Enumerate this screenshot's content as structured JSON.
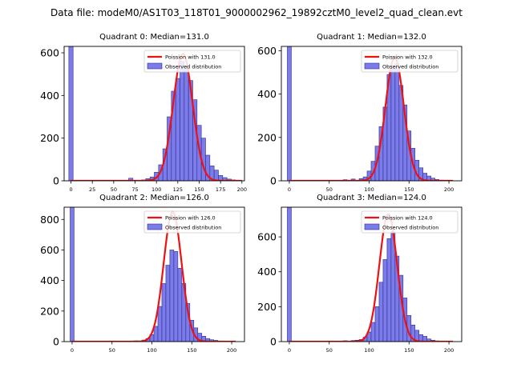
{
  "figure_title": "Data file: modeM0/AS1T03_118T01_9000002962_19892cztM0_level2_quad_clean.evt",
  "colors": {
    "bar_fill": "#7b7bea",
    "bar_edge": "#2d2d8f",
    "poisson_line": "#ee1111",
    "axis": "#000000"
  },
  "chart_data": [
    {
      "type": "bar",
      "title": "Quadrant 0: Median=131.0",
      "xlim": [
        -8,
        203
      ],
      "ylim": [
        0,
        630
      ],
      "xticks": [
        0,
        25,
        50,
        75,
        100,
        125,
        150,
        175,
        200
      ],
      "yticks": [
        0,
        200,
        400,
        600
      ],
      "legend": {
        "placement": "top-right",
        "entries": [
          "Poission with 131.0",
          "Observed distribution"
        ]
      },
      "bin_width": 5,
      "zero_bin": {
        "x": 0,
        "height": 630
      },
      "bins": [
        [
          70,
          12
        ],
        [
          85,
          4
        ],
        [
          90,
          10
        ],
        [
          95,
          18
        ],
        [
          100,
          40
        ],
        [
          105,
          75
        ],
        [
          110,
          150
        ],
        [
          115,
          300
        ],
        [
          120,
          420
        ],
        [
          125,
          480
        ],
        [
          130,
          560
        ],
        [
          135,
          530
        ],
        [
          140,
          470
        ],
        [
          145,
          380
        ],
        [
          150,
          260
        ],
        [
          155,
          200
        ],
        [
          160,
          120
        ],
        [
          165,
          70
        ],
        [
          170,
          50
        ],
        [
          175,
          25
        ],
        [
          180,
          15
        ],
        [
          185,
          8
        ],
        [
          190,
          4
        ]
      ],
      "poisson": {
        "mean": 131.0,
        "peak": 595,
        "x_range": [
          0,
          200
        ]
      }
    },
    {
      "type": "bar",
      "title": "Quadrant 1: Median=132.0",
      "xlim": [
        -10,
        216
      ],
      "ylim": [
        0,
        620
      ],
      "xticks": [
        0,
        50,
        100,
        150,
        200
      ],
      "yticks": [
        0,
        200,
        400,
        600
      ],
      "legend": {
        "placement": "top-right",
        "entries": [
          "Poission with 132.0",
          "Observed distribution"
        ]
      },
      "bin_width": 5,
      "zero_bin": {
        "x": 0,
        "height": 620
      },
      "bins": [
        [
          70,
          5
        ],
        [
          80,
          8
        ],
        [
          90,
          10
        ],
        [
          95,
          18
        ],
        [
          100,
          45
        ],
        [
          105,
          90
        ],
        [
          110,
          160
        ],
        [
          115,
          250
        ],
        [
          120,
          340
        ],
        [
          125,
          490
        ],
        [
          130,
          520
        ],
        [
          135,
          540
        ],
        [
          140,
          440
        ],
        [
          145,
          350
        ],
        [
          150,
          230
        ],
        [
          155,
          150
        ],
        [
          160,
          95
        ],
        [
          165,
          60
        ],
        [
          170,
          35
        ],
        [
          175,
          22
        ],
        [
          180,
          12
        ],
        [
          185,
          6
        ],
        [
          190,
          3
        ],
        [
          195,
          2
        ]
      ],
      "poisson": {
        "mean": 132.0,
        "peak": 570,
        "x_range": [
          0,
          205
        ]
      }
    },
    {
      "type": "bar",
      "title": "Quadrant 2: Median=126.0",
      "xlim": [
        -10,
        216
      ],
      "ylim": [
        0,
        880
      ],
      "xticks": [
        0,
        50,
        100,
        150,
        200
      ],
      "yticks": [
        0,
        200,
        400,
        600,
        800
      ],
      "legend": {
        "placement": "top-right",
        "entries": [
          "Poission with 126.0",
          "Observed distribution"
        ]
      },
      "bin_width": 5,
      "zero_bin": {
        "x": 0,
        "height": 880
      },
      "bins": [
        [
          70,
          3
        ],
        [
          80,
          5
        ],
        [
          90,
          10
        ],
        [
          95,
          20
        ],
        [
          100,
          45
        ],
        [
          105,
          100
        ],
        [
          110,
          230
        ],
        [
          115,
          380
        ],
        [
          120,
          500
        ],
        [
          125,
          600
        ],
        [
          130,
          590
        ],
        [
          135,
          480
        ],
        [
          140,
          380
        ],
        [
          145,
          250
        ],
        [
          150,
          140
        ],
        [
          155,
          90
        ],
        [
          160,
          55
        ],
        [
          165,
          35
        ],
        [
          170,
          20
        ],
        [
          175,
          12
        ],
        [
          180,
          8
        ],
        [
          185,
          4
        ],
        [
          190,
          2
        ]
      ],
      "poisson": {
        "mean": 126.0,
        "peak": 850,
        "x_range": [
          0,
          205
        ]
      }
    },
    {
      "type": "bar",
      "title": "Quadrant 3: Median=124.0",
      "xlim": [
        -10,
        216
      ],
      "ylim": [
        0,
        770
      ],
      "xticks": [
        0,
        50,
        100,
        150,
        200
      ],
      "yticks": [
        0,
        200,
        400,
        600
      ],
      "legend": {
        "placement": "top-right",
        "entries": [
          "Poission with 124.0",
          "Observed distribution"
        ]
      },
      "bin_width": 5,
      "zero_bin": {
        "x": 0,
        "height": 770
      },
      "bins": [
        [
          70,
          5
        ],
        [
          80,
          6
        ],
        [
          85,
          8
        ],
        [
          90,
          12
        ],
        [
          95,
          25
        ],
        [
          100,
          55
        ],
        [
          105,
          110
        ],
        [
          110,
          200
        ],
        [
          115,
          340
        ],
        [
          120,
          470
        ],
        [
          125,
          590
        ],
        [
          130,
          630
        ],
        [
          135,
          490
        ],
        [
          140,
          380
        ],
        [
          145,
          250
        ],
        [
          150,
          150
        ],
        [
          155,
          95
        ],
        [
          160,
          65
        ],
        [
          165,
          40
        ],
        [
          170,
          30
        ],
        [
          175,
          15
        ],
        [
          180,
          8
        ],
        [
          185,
          4
        ]
      ],
      "poisson": {
        "mean": 124.0,
        "peak": 730,
        "x_range": [
          0,
          205
        ]
      }
    }
  ]
}
